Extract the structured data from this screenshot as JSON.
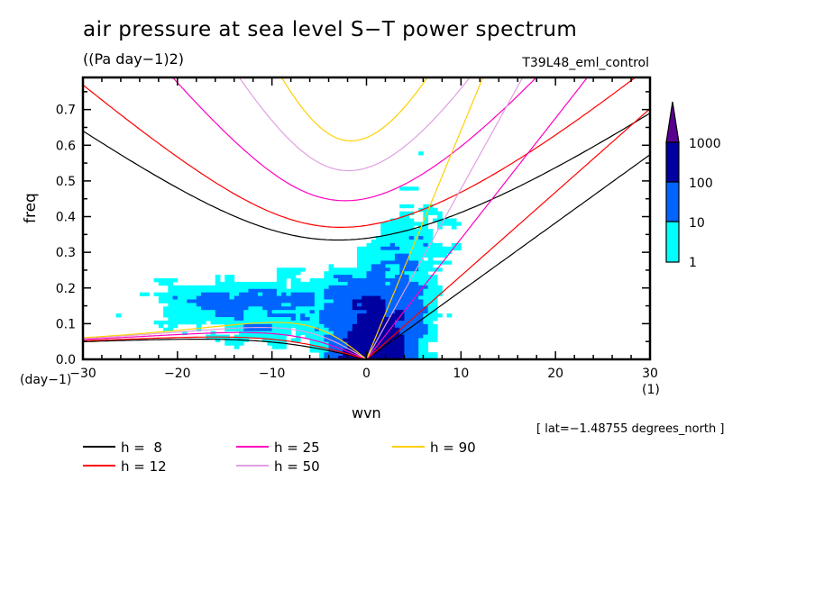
{
  "chart_data": {
    "type": "heatmap",
    "title": "air pressure at sea level S−T power spectrum",
    "subtitle": "((Pa day−1)2)",
    "run_name": "T39L48_eml_control",
    "xlabel": "wvn",
    "ylabel": "freq",
    "x_unit": "(1)",
    "y_unit": "(day−1)",
    "xlim": [
      -30,
      30
    ],
    "ylim": [
      0,
      0.79
    ],
    "x_ticks": [
      -30,
      -20,
      -10,
      0,
      10,
      20,
      30
    ],
    "x_tick_labels": [
      "−30",
      "−20",
      "−10",
      "0",
      "10",
      "20",
      "30"
    ],
    "y_ticks": [
      0.0,
      0.1,
      0.2,
      0.3,
      0.4,
      0.5,
      0.6,
      0.7
    ],
    "y_tick_labels": [
      "0.0",
      "0.1",
      "0.2",
      "0.3",
      "0.4",
      "0.5",
      "0.6",
      "0.7"
    ],
    "annotation": "[ lat=−1.48755 degrees_north ]",
    "colorbar": {
      "levels": [
        1,
        10,
        100,
        1000
      ],
      "level_labels": [
        "1",
        "10",
        "100",
        "1000"
      ],
      "colors": [
        "#00ffff",
        "#0064ff",
        "#0000a0",
        "#5a0090"
      ],
      "extend": "max"
    },
    "power_regions": [
      {
        "level": 1,
        "note": "broad cyan region from wvn ≈ -28 to 13, freq 0 to 0.3 on westward side, extending up to freq ≈ 0.65 near wvn -3..8"
      },
      {
        "level": 10,
        "note": "blue region concentrated near wvn -5..7, freq 0..0.25"
      },
      {
        "level": 100,
        "note": "dark blue core near wvn -2..2, freq 0..0.07"
      }
    ],
    "dispersion_curves": {
      "equivalent_depths": [
        8,
        12,
        25,
        50,
        90
      ],
      "legend": [
        {
          "label": "h =  8",
          "color": "#000000"
        },
        {
          "label": "h = 12",
          "color": "#ff0000"
        },
        {
          "label": "h = 25",
          "color": "#ff00c0"
        },
        {
          "label": "h = 50",
          "color": "#e0a0e0"
        },
        {
          "label": "h = 90",
          "color": "#ffd000"
        }
      ],
      "families": [
        "Kelvin",
        "equatorial Rossby (n=1)",
        "inertia-gravity (n=1)"
      ]
    },
    "legend_placement": "bottom-left"
  }
}
